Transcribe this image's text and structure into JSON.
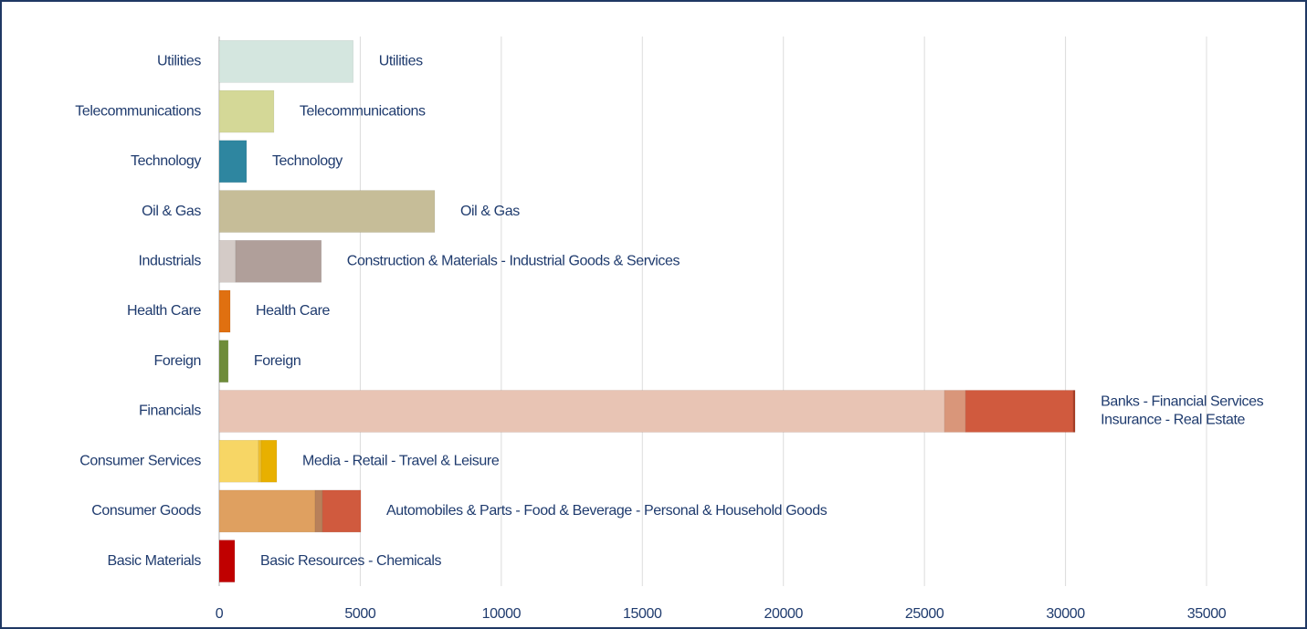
{
  "chart_data": {
    "type": "stacked-bar-horizontal",
    "categories": [
      "Basic Materials",
      "Consumer Goods",
      "Consumer Services",
      "Financials",
      "Foreign",
      "Health Care",
      "Industrials",
      "Oil & Gas",
      "Technology",
      "Telecommunications",
      "Utilities"
    ],
    "bar_labels": [
      [
        "Basic Resources - Chemicals"
      ],
      [
        "Automobiles & Parts - Food & Beverage  - Personal & Household Goods"
      ],
      [
        "Media - Retail - Travel & Leisure"
      ],
      [
        "Banks - Financial Services",
        "Insurance - Real Estate"
      ],
      [
        "Foreign"
      ],
      [
        "Health Care"
      ],
      [
        "Construction & Materials - Industrial Goods & Services"
      ],
      [
        "Oil & Gas"
      ],
      [
        "Technology"
      ],
      [
        "Telecommunications"
      ],
      [
        "Utilities"
      ]
    ],
    "segments": [
      [
        550
      ],
      [
        3400,
        260,
        1360
      ],
      [
        1390,
        100,
        550
      ],
      [
        25710,
        745,
        3820,
        65
      ],
      [
        320
      ],
      [
        390
      ],
      [
        580,
        3040
      ],
      [
        7640
      ],
      [
        970
      ],
      [
        1940
      ],
      [
        4750
      ]
    ],
    "segment_colors": [
      [
        "#c00000"
      ],
      [
        "#dfa060",
        "#b8805a",
        "#d05a3e"
      ],
      [
        "#f7d665",
        "#f0c030",
        "#e8b000"
      ],
      [
        "#e8c4b4",
        "#d9967a",
        "#d05a3e",
        "#a83a20"
      ],
      [
        "#6e8c3a"
      ],
      [
        "#e07010"
      ],
      [
        "#d4cbc7",
        "#b09f9a"
      ],
      [
        "#c6bd98"
      ],
      [
        "#2e86a0"
      ],
      [
        "#d4d897"
      ],
      [
        "#d4e6df"
      ]
    ],
    "xlim": [
      0,
      35000
    ],
    "xticks": [
      0,
      5000,
      10000,
      15000,
      20000,
      25000,
      30000,
      35000
    ],
    "grid": true
  }
}
